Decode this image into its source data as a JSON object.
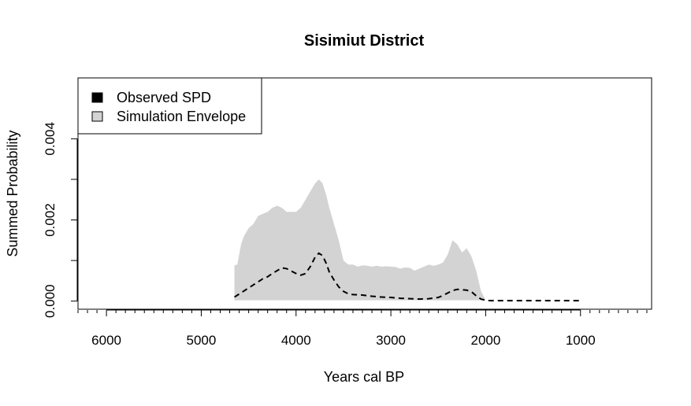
{
  "chart_data": {
    "type": "area",
    "title": "Sisimiut District",
    "xlabel": "Years cal BP",
    "ylabel": "Summed Probability",
    "xlim": [
      6300,
      250
    ],
    "ylim": [
      -0.0002,
      0.0055
    ],
    "x_reversed": true,
    "x_ticks": [
      6000,
      5000,
      4000,
      3000,
      2000,
      1000
    ],
    "x_tick_labels": [
      "6000",
      "5000",
      "4000",
      "3000",
      "2000",
      "1000"
    ],
    "y_ticks": [
      0,
      0.002,
      0.004
    ],
    "y_tick_labels": [
      "0.000",
      "0.002",
      "0.004"
    ],
    "legend": {
      "position": "top-left",
      "entries": [
        {
          "label": "Observed SPD",
          "color": "#000000"
        },
        {
          "label": "Simulation Envelope",
          "color": "#d3d3d3"
        }
      ]
    },
    "envelope": {
      "name": "Simulation Envelope",
      "color": "#d3d3d3",
      "x": [
        4650,
        4620,
        4580,
        4550,
        4500,
        4450,
        4400,
        4350,
        4300,
        4250,
        4200,
        4150,
        4100,
        4050,
        4000,
        3950,
        3900,
        3850,
        3800,
        3760,
        3720,
        3680,
        3650,
        3600,
        3550,
        3500,
        3450,
        3400,
        3350,
        3300,
        3250,
        3200,
        3150,
        3100,
        3050,
        3000,
        2950,
        2900,
        2850,
        2800,
        2750,
        2700,
        2650,
        2600,
        2550,
        2500,
        2450,
        2400,
        2350,
        2300,
        2250,
        2200,
        2150,
        2100,
        2050,
        2000
      ],
      "upper": [
        0.00088,
        0.0009,
        0.0014,
        0.0016,
        0.0018,
        0.0019,
        0.0021,
        0.00215,
        0.0022,
        0.0023,
        0.00235,
        0.0023,
        0.0022,
        0.0022,
        0.0022,
        0.0023,
        0.0025,
        0.0027,
        0.0029,
        0.003,
        0.0029,
        0.0026,
        0.0023,
        0.0019,
        0.0015,
        0.001,
        0.0009,
        0.0009,
        0.00085,
        0.00088,
        0.00087,
        0.00085,
        0.00087,
        0.00085,
        0.00086,
        0.00085,
        0.00084,
        0.0008,
        0.00083,
        0.00082,
        0.00075,
        0.0008,
        0.00085,
        0.0009,
        0.00087,
        0.0009,
        0.00095,
        0.00115,
        0.0015,
        0.0014,
        0.0012,
        0.0013,
        0.0011,
        0.00075,
        0.00025,
        2e-05
      ],
      "lower": [
        2e-05,
        2e-05,
        2e-05,
        2e-05,
        2e-05,
        2e-05,
        2e-05,
        2e-05,
        2e-05,
        2e-05,
        2e-05,
        2e-05,
        2e-05,
        2e-05,
        2e-05,
        2e-05,
        2e-05,
        2e-05,
        2e-05,
        2e-05,
        2e-05,
        2e-05,
        2e-05,
        2e-05,
        2e-05,
        2e-05,
        2e-05,
        2e-05,
        2e-05,
        2e-05,
        2e-05,
        2e-05,
        2e-05,
        2e-05,
        2e-05,
        2e-05,
        2e-05,
        2e-05,
        2e-05,
        2e-05,
        2e-05,
        2e-05,
        2e-05,
        2e-05,
        2e-05,
        2e-05,
        2e-05,
        2e-05,
        2e-05,
        2e-05,
        2e-05,
        2e-05,
        2e-05,
        2e-05,
        2e-05,
        2e-05
      ]
    },
    "series": [
      {
        "name": "Observed SPD",
        "style": "dashed",
        "color": "#000000",
        "x": [
          4650,
          4550,
          4450,
          4350,
          4300,
          4250,
          4200,
          4150,
          4100,
          4050,
          4000,
          3950,
          3900,
          3850,
          3800,
          3760,
          3720,
          3680,
          3650,
          3600,
          3550,
          3500,
          3450,
          3400,
          3300,
          3200,
          3100,
          3000,
          2900,
          2800,
          2700,
          2600,
          2500,
          2450,
          2400,
          2350,
          2300,
          2250,
          2200,
          2150,
          2100,
          2050,
          2000,
          1950,
          1800,
          1500,
          1200,
          1000
        ],
        "values": [
          0.0001,
          0.00025,
          0.0004,
          0.00055,
          0.0006,
          0.00068,
          0.00075,
          0.00082,
          0.0008,
          0.00074,
          0.00068,
          0.00064,
          0.00068,
          0.00085,
          0.00108,
          0.00118,
          0.00112,
          0.00092,
          0.00072,
          0.00052,
          0.00035,
          0.00024,
          0.00018,
          0.00016,
          0.00015,
          0.00012,
          0.0001,
          9e-05,
          7e-05,
          6e-05,
          5e-05,
          6e-05,
          9e-05,
          0.00014,
          0.0002,
          0.00026,
          0.00029,
          0.00028,
          0.00027,
          0.00023,
          0.00013,
          5e-05,
          2e-05,
          1e-05,
          1e-05,
          1e-05,
          1e-05,
          1e-05
        ]
      }
    ]
  }
}
